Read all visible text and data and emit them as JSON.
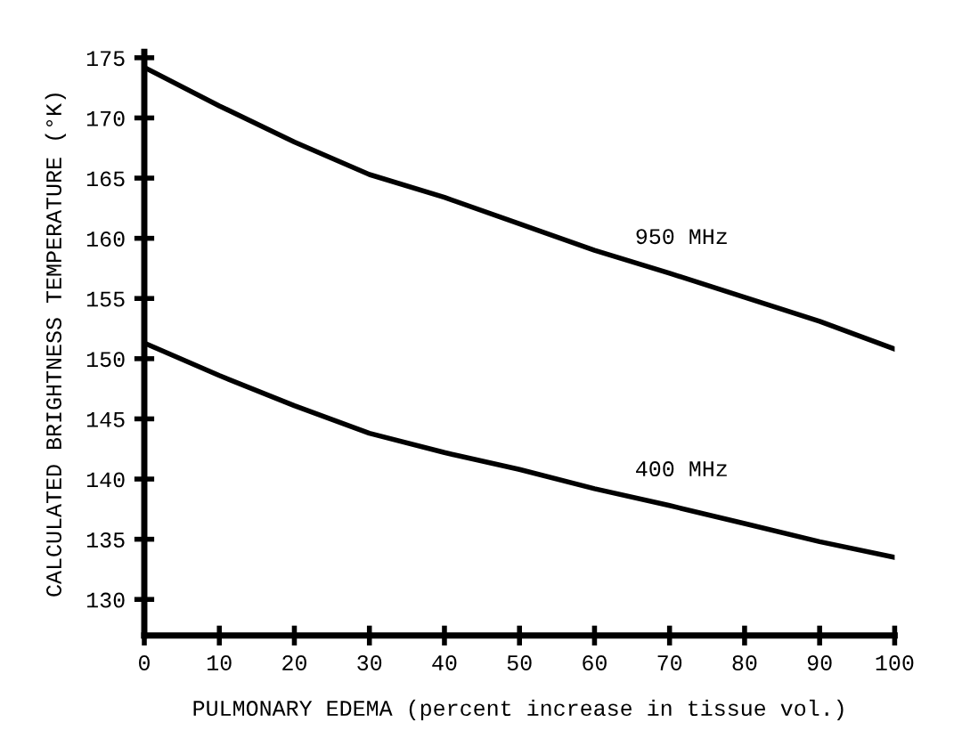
{
  "chart_data": {
    "type": "line",
    "xlabel": "PULMONARY EDEMA (percent increase in tissue vol.)",
    "ylabel": "CALCULATED BRIGHTNESS TEMPERATURE (°K)",
    "x": [
      0,
      10,
      20,
      30,
      40,
      50,
      60,
      70,
      80,
      90,
      100
    ],
    "series": [
      {
        "name": "950 MHz",
        "color": "#000000",
        "values": [
          174.2,
          171.0,
          168.0,
          165.3,
          163.4,
          161.2,
          159.0,
          157.1,
          155.1,
          153.1,
          150.8
        ]
      },
      {
        "name": "400 MHz",
        "color": "#000000",
        "values": [
          151.3,
          148.6,
          146.1,
          143.8,
          142.2,
          140.8,
          139.2,
          137.8,
          136.3,
          134.8,
          133.5
        ]
      }
    ],
    "xlim": [
      0,
      100
    ],
    "xticks": [
      0,
      10,
      20,
      30,
      40,
      50,
      60,
      70,
      80,
      90,
      100
    ],
    "ylim": [
      127,
      175.5
    ],
    "yticks": [
      130,
      135,
      140,
      145,
      150,
      155,
      160,
      165,
      170,
      175
    ],
    "grid": false,
    "legend": false,
    "marker": "none",
    "line_style": "solid"
  }
}
